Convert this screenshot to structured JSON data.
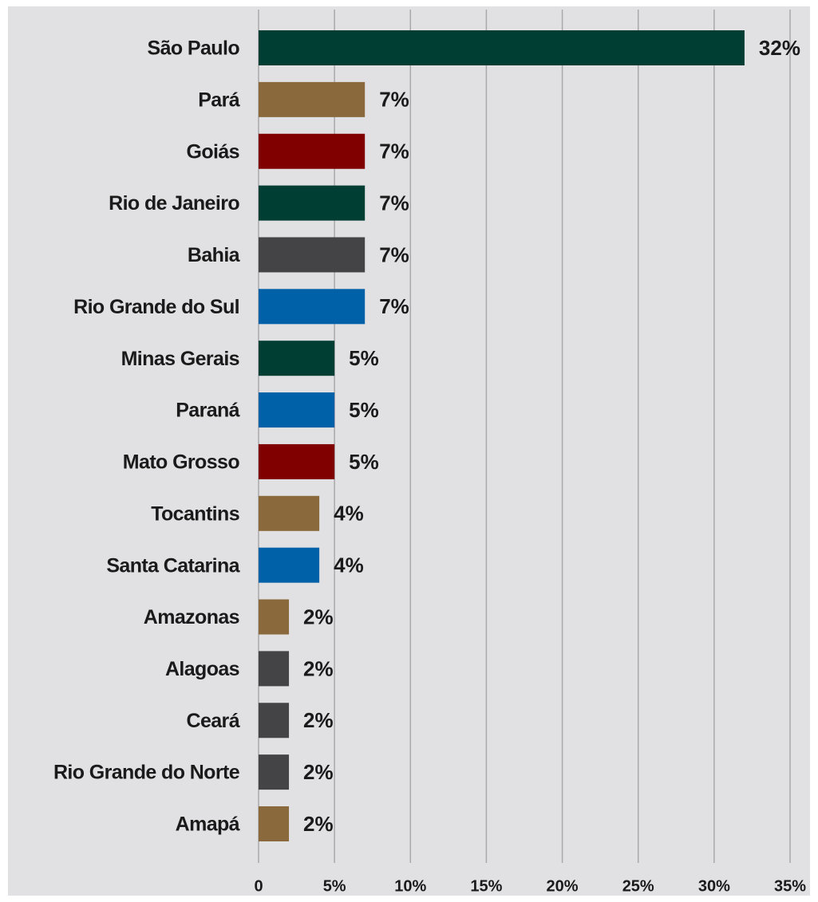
{
  "chart_data": {
    "type": "bar",
    "orientation": "horizontal",
    "categories": [
      "São Paulo",
      "Pará",
      "Goiás",
      "Rio de Janeiro",
      "Bahia",
      "Rio Grande do Sul",
      "Minas Gerais",
      "Paraná",
      "Mato Grosso",
      "Tocantins",
      "Santa Catarina",
      "Amazonas",
      "Alagoas",
      "Ceará",
      "Rio Grande do Norte",
      "Amapá"
    ],
    "values": [
      32,
      7,
      7,
      7,
      7,
      7,
      5,
      5,
      5,
      4,
      4,
      2,
      2,
      2,
      2,
      2
    ],
    "value_labels": [
      "32%",
      "7%",
      "7%",
      "7%",
      "7%",
      "7%",
      "5%",
      "5%",
      "5%",
      "4%",
      "4%",
      "2%",
      "2%",
      "2%",
      "2%",
      "2%"
    ],
    "colors": [
      "#003d33",
      "#8a6a3c",
      "#800000",
      "#003d33",
      "#444446",
      "#0061a9",
      "#003d33",
      "#0061a9",
      "#800000",
      "#8a6a3c",
      "#0061a9",
      "#8a6a3c",
      "#444446",
      "#444446",
      "#444446",
      "#8a6a3c"
    ],
    "xlim": [
      0,
      35
    ],
    "xticks": [
      0,
      {
        "value": 5,
        "label": "5%"
      },
      {
        "value": 10,
        "label": "10%"
      },
      {
        "value": 15,
        "label": "15%"
      },
      {
        "value": 20,
        "label": "20%"
      },
      {
        "value": 25,
        "label": "25%"
      },
      {
        "value": 30,
        "label": "30%"
      },
      {
        "value": 35,
        "label": "35%"
      }
    ],
    "grid": true
  }
}
